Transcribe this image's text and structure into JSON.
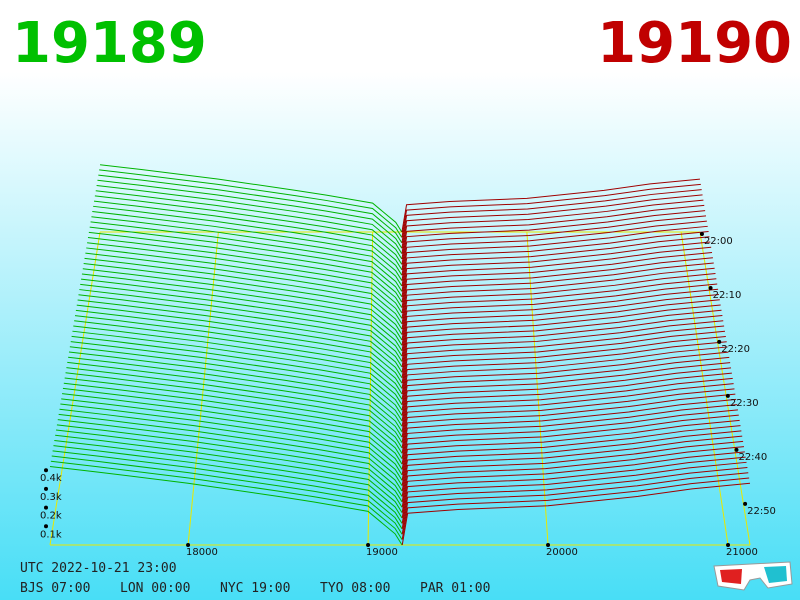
{
  "chart_data": {
    "type": "depth3d",
    "bid_label": "19189",
    "ask_label": "19190",
    "bid": {
      "color": "#00b400",
      "prices": [
        19189,
        19150,
        19000,
        18700,
        18500,
        18000,
        17500,
        17233
      ],
      "depths": [
        0,
        60,
        180,
        230,
        260,
        330,
        390,
        420
      ]
    },
    "ask": {
      "color": "#a00000",
      "prices": [
        19190,
        19220,
        19500,
        20000,
        20500,
        20800,
        21122
      ],
      "depths": [
        0,
        170,
        190,
        210,
        260,
        300,
        330
      ]
    },
    "xlim": [
      17233,
      21122
    ],
    "xticks": [
      18000,
      19000,
      20000,
      21000
    ],
    "zticks": [
      {
        "value": 100,
        "label": "0.1k"
      },
      {
        "value": 200,
        "label": "0.2k"
      },
      {
        "value": 300,
        "label": "0.3k"
      },
      {
        "value": 400,
        "label": "0.4k"
      }
    ],
    "tlim": [
      1320,
      1378
    ],
    "tticks": [
      {
        "value": 1320,
        "label": "22:00"
      },
      {
        "value": 1330,
        "label": "22:10"
      },
      {
        "value": 1340,
        "label": "22:20"
      },
      {
        "value": 1350,
        "label": "22:30"
      },
      {
        "value": 1360,
        "label": "22:40"
      },
      {
        "value": 1370,
        "label": "22:50"
      }
    ],
    "grid_color": "#e8e800"
  },
  "footer": {
    "utc": "UTC 2022-10-21 23:00",
    "zones": [
      "BJS 07:00",
      "LON 00:00",
      "NYC 19:00",
      "TYO 08:00",
      "PAR 01:00"
    ]
  }
}
